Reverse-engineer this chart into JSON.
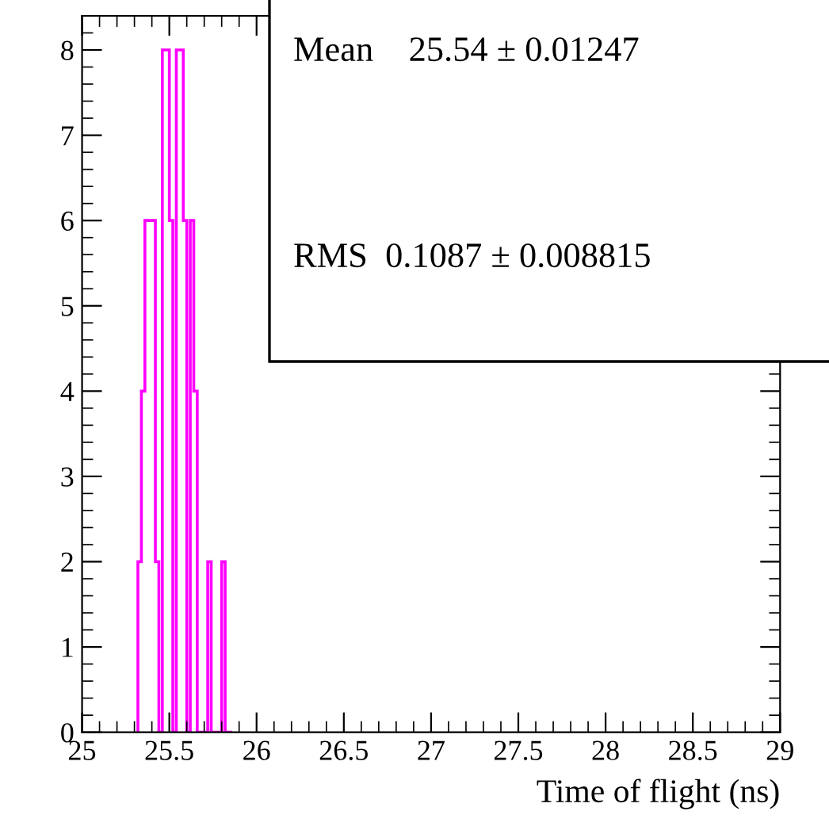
{
  "chart_data": {
    "type": "histogram",
    "xlabel": "Time of flight (ns)",
    "bins": [
      25.32,
      25.34,
      25.36,
      25.38,
      25.4,
      25.42,
      25.44,
      25.46,
      25.48,
      25.5,
      25.52,
      25.54,
      25.56,
      25.58,
      25.6,
      25.62,
      25.64,
      25.66,
      25.68,
      25.7,
      25.72,
      25.74,
      25.76,
      25.78,
      25.8,
      25.82,
      25.84,
      25.86
    ],
    "values": [
      2,
      4,
      6,
      6,
      6,
      2,
      0,
      8,
      8,
      6,
      0,
      8,
      8,
      6,
      0,
      6,
      4,
      0,
      0,
      0,
      2,
      0,
      0,
      0,
      2,
      0,
      0
    ],
    "color": "#ff00ff",
    "xlim": [
      25,
      29
    ],
    "xticks": [
      25,
      25.5,
      26,
      26.5,
      27,
      27.5,
      28,
      28.5,
      29
    ],
    "ylim": [
      0,
      8.4
    ],
    "yticks": [
      0,
      1,
      2,
      3,
      4,
      5,
      6,
      7,
      8
    ],
    "annotations": [
      "Mean    25.54 ± 0.01247",
      "RMS  0.1087 ± 0.008815"
    ]
  }
}
